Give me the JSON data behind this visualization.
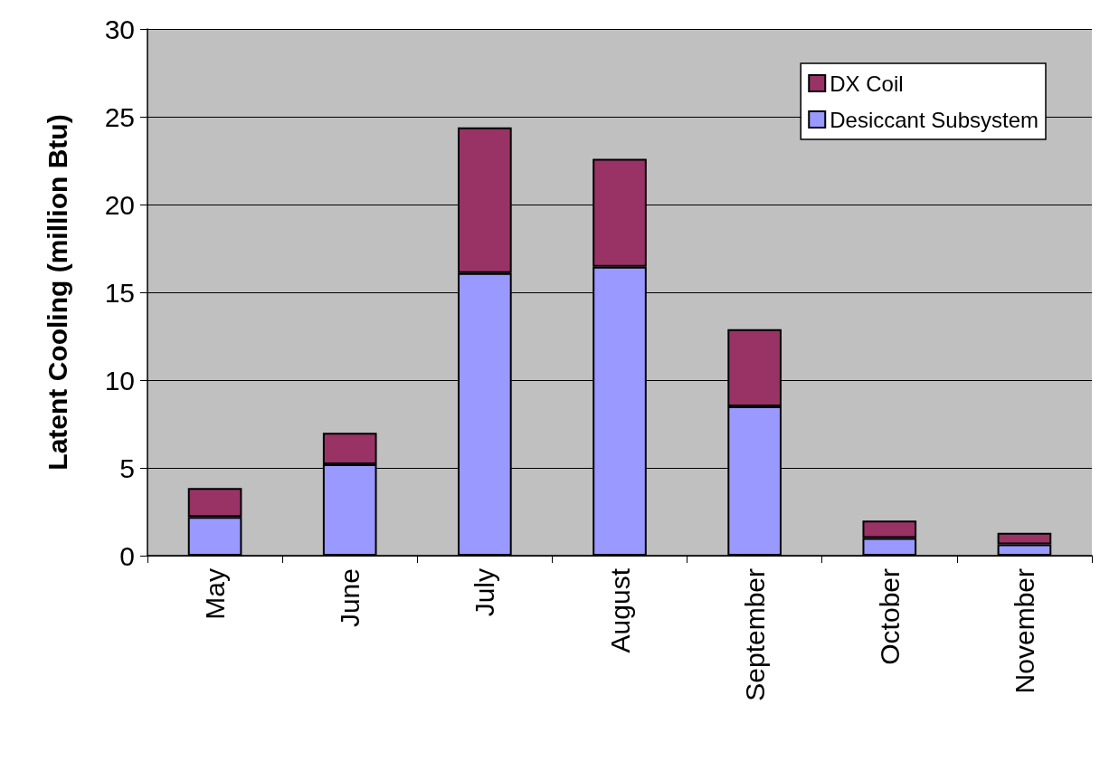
{
  "chart_data": {
    "type": "bar",
    "stacked": true,
    "ylabel": "Latent Cooling (million Btu)",
    "categories": [
      "May",
      "June",
      "July",
      "August",
      "September",
      "October",
      "November"
    ],
    "series": [
      {
        "name": "Desiccant Subsystem",
        "color": "#9999ff",
        "values": [
          2.2,
          5.2,
          16.1,
          16.45,
          8.5,
          1.0,
          0.65
        ]
      },
      {
        "name": "DX Coil",
        "color": "#993366",
        "values": [
          1.65,
          1.8,
          8.3,
          6.15,
          4.4,
          1.0,
          0.65
        ]
      }
    ],
    "ylim": [
      0,
      30
    ],
    "yticks": [
      0,
      5,
      10,
      15,
      20,
      25,
      30
    ],
    "grid": "y",
    "legend": "top right"
  }
}
